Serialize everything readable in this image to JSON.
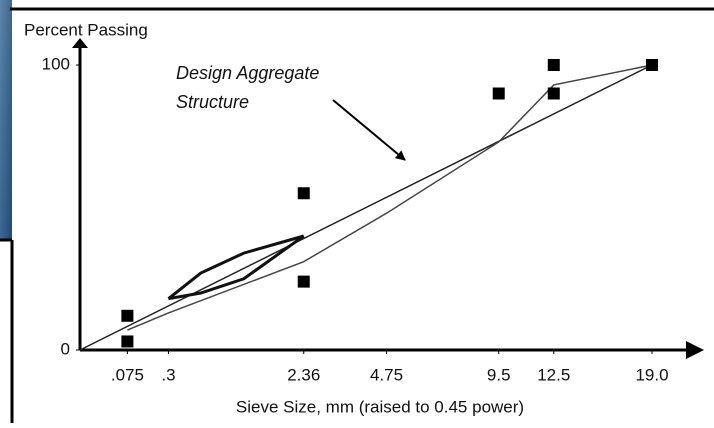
{
  "chart_data": {
    "type": "gradation",
    "y_title": "Percent Passing",
    "x_title": "Sieve Size, mm (raised to 0.45 power)",
    "annotation": [
      "Design Aggregate",
      "Structure"
    ],
    "x_power": 0.45,
    "xlim": [
      0,
      19
    ],
    "ylim": [
      0,
      100
    ],
    "xticks": [
      {
        "value": 0.075,
        "label": ".075"
      },
      {
        "value": 0.3,
        "label": ".3"
      },
      2.36,
      4.75,
      9.5,
      12.5,
      {
        "value": 19,
        "label": "19.0"
      }
    ],
    "yticks": [
      0,
      100
    ],
    "max_density": {
      "color": "#222",
      "x": [
        0,
        19
      ],
      "values": [
        0,
        100
      ]
    },
    "design_curve": {
      "color": "#444",
      "x": [
        0.075,
        0.3,
        2.36,
        4.75,
        9.5,
        12.5,
        19
      ],
      "values": [
        7,
        13,
        31,
        48,
        73,
        93,
        100
      ]
    },
    "restricted_zone": {
      "color": "#111",
      "x": [
        0.3,
        0.6,
        1.18,
        2.36
      ],
      "upper": [
        18,
        27,
        34,
        40
      ],
      "lower": [
        18,
        20,
        25,
        40
      ]
    },
    "control_points": {
      "color": "#000",
      "x": [
        0.075,
        0.075,
        2.36,
        2.36,
        9.5,
        12.5,
        12.5,
        19
      ],
      "values": [
        12,
        3,
        55,
        24,
        90,
        100,
        90,
        100
      ]
    }
  }
}
